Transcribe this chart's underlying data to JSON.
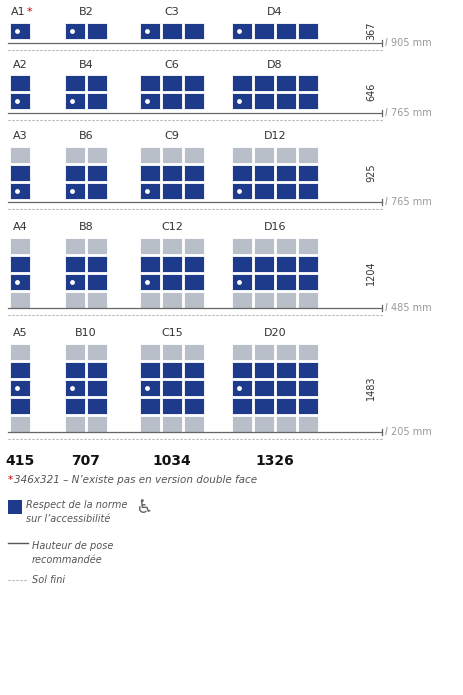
{
  "blue": "#1e3a8a",
  "gray": "#b8bfc8",
  "white": "#ffffff",
  "bg": "#ffffff",
  "sections": [
    {
      "labels": [
        "A1",
        "B2",
        "C3",
        "D4"
      ],
      "star_idx": 0,
      "ncols": [
        1,
        2,
        3,
        4
      ],
      "nrows": 1,
      "blue_rows": [
        0
      ],
      "gray_rows": [],
      "height_num": "367",
      "mm_label": "905 mm"
    },
    {
      "labels": [
        "A2",
        "B4",
        "C6",
        "D8"
      ],
      "star_idx": -1,
      "ncols": [
        1,
        2,
        3,
        4
      ],
      "nrows": 2,
      "blue_rows": [
        0,
        1
      ],
      "gray_rows": [],
      "height_num": "646",
      "mm_label": "765 mm"
    },
    {
      "labels": [
        "A3",
        "B6",
        "C9",
        "D12"
      ],
      "star_idx": -1,
      "ncols": [
        1,
        2,
        3,
        4
      ],
      "nrows": 3,
      "blue_rows": [
        1,
        2
      ],
      "gray_rows": [
        0
      ],
      "height_num": "925",
      "mm_label": "765 mm"
    },
    {
      "labels": [
        "A4",
        "B8",
        "C12",
        "D16"
      ],
      "star_idx": -1,
      "ncols": [
        1,
        2,
        3,
        4
      ],
      "nrows": 4,
      "blue_rows": [
        1,
        2
      ],
      "gray_rows": [
        0,
        3
      ],
      "height_num": "1204",
      "mm_label": "485 mm"
    },
    {
      "labels": [
        "A5",
        "B10",
        "C15",
        "D20"
      ],
      "star_idx": -1,
      "ncols": [
        1,
        2,
        3,
        4
      ],
      "nrows": 5,
      "blue_rows": [
        1,
        2,
        3
      ],
      "gray_rows": [
        0,
        4
      ],
      "height_num": "1483",
      "mm_label": "205 mm"
    }
  ],
  "widths": [
    "415",
    "707",
    "1034",
    "1326"
  ],
  "footnote_text": "346x321 – N’existe pas en version double face",
  "legend_blue_text": "Respect de la norme\nsur l’accessibilité",
  "legend_line_text": "Hauteur de pose\nrecommandée",
  "legend_dot_text": "Sol fini"
}
